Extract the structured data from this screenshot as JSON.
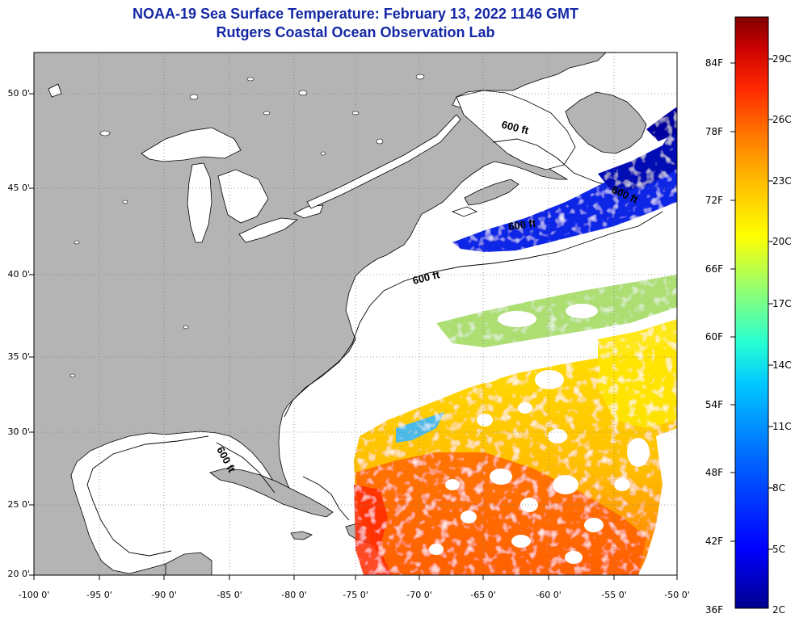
{
  "title": {
    "line1": "NOAA-19 Sea Surface Temperature:  February 13, 2022 1146 GMT",
    "line2": "Rutgers Coastal Ocean Observation Lab"
  },
  "map": {
    "lon_range": [
      -100,
      -50
    ],
    "lat_range": [
      20,
      52.5
    ],
    "lon_ticks": [
      "-100 0'",
      "-95 0'",
      "-90 0'",
      "-85 0'",
      "-80 0'",
      "-75 0'",
      "-70 0'",
      "-65 0'",
      "-60 0'",
      "-55 0'",
      "-50 0'"
    ],
    "lat_ticks": [
      "50 0'",
      "45 0'",
      "40 0'",
      "35 0'",
      "30 0'",
      "25 0'",
      "20 0'"
    ],
    "contour_label": "600 ft",
    "contour_labels": [
      "600 ft",
      "600 ft",
      "600 ft",
      "600 ft",
      "600 ft"
    ],
    "colors": {
      "land": "#b4b4b4",
      "ocean_nodata": "#ffffff",
      "grid": "#808080",
      "coast": "#000000"
    }
  },
  "colorbar": {
    "fahrenheit_labels": [
      "84F",
      "78F",
      "72F",
      "66F",
      "60F",
      "54F",
      "48F",
      "42F",
      "36F"
    ],
    "celsius_labels": [
      "29C",
      "26C",
      "23C",
      "20C",
      "17C",
      "14C",
      "11C",
      "8C",
      "5C",
      "2C"
    ],
    "colormap": [
      "#00008c",
      "#0000ff",
      "#0064ff",
      "#00c8ff",
      "#28ffd2",
      "#a0ff64",
      "#ffff00",
      "#ffbe00",
      "#ff7800",
      "#ff2800",
      "#c80000",
      "#800000"
    ]
  }
}
